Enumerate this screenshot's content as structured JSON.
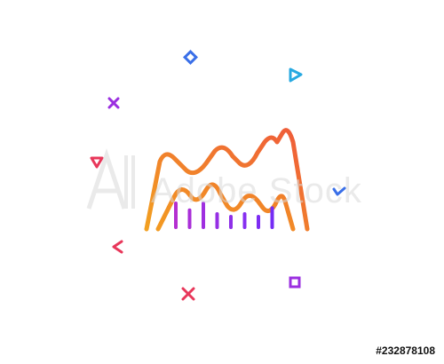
{
  "image": {
    "subject": "line-chart-icon",
    "palette": {
      "gradient_start": "#f7a21b",
      "gradient_mid": "#e8375a",
      "gradient_end": "#7b2cf5",
      "decor_blue": "#3a6fe8",
      "decor_cyan": "#27a9e1",
      "decor_pink": "#e8375a",
      "decor_purple": "#9b2fe0"
    },
    "watermark": {
      "text": "Adobe Stock",
      "color": "#d9d9d9"
    },
    "stock_id": "#232878108",
    "bar_levels": [
      0.45,
      0.32,
      0.45,
      0.25,
      0.2,
      0.25,
      0.2,
      0.36
    ]
  }
}
